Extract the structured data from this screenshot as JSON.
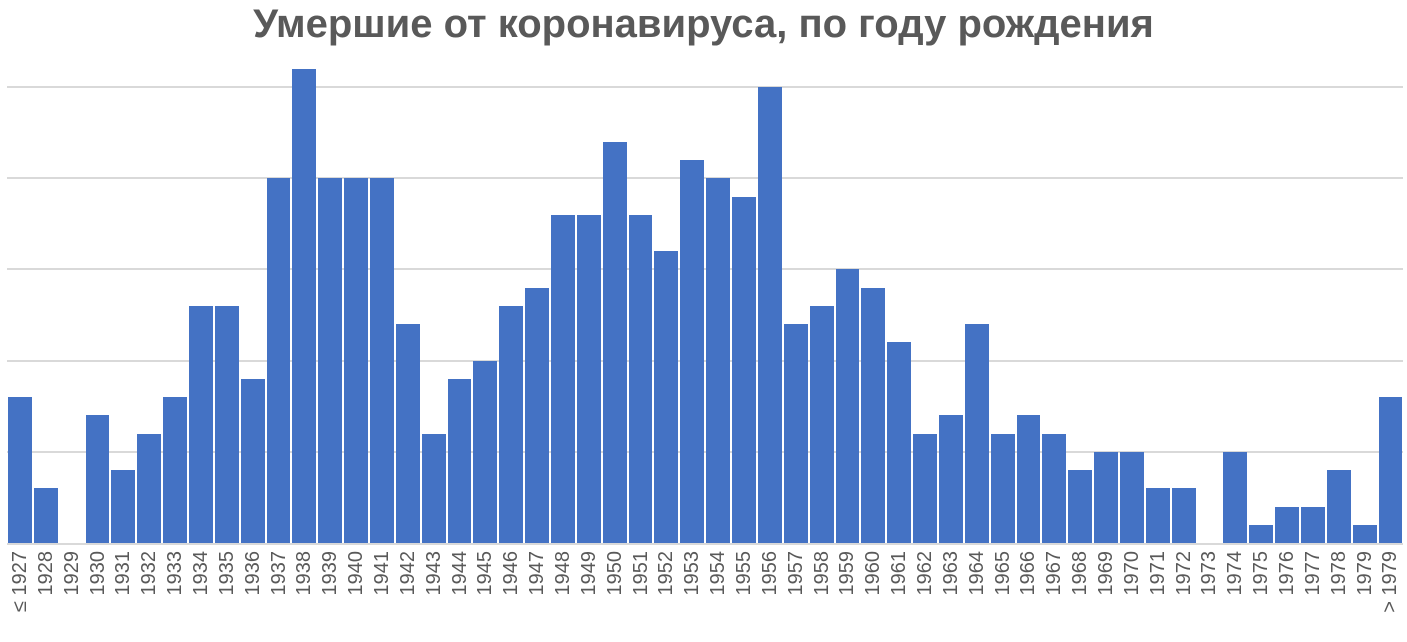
{
  "title": "Умершие от коронавируса, по году рождения",
  "chart_data": {
    "type": "bar",
    "title": "Умершие от коронавируса, по году рождения",
    "xlabel": "",
    "ylabel": "",
    "categories": [
      "≤ 1927",
      "1928",
      "1929",
      "1930",
      "1931",
      "1932",
      "1933",
      "1934",
      "1935",
      "1936",
      "1937",
      "1938",
      "1939",
      "1940",
      "1941",
      "1942",
      "1943",
      "1944",
      "1945",
      "1946",
      "1947",
      "1948",
      "1949",
      "1950",
      "1951",
      "1952",
      "1953",
      "1954",
      "1955",
      "1956",
      "1957",
      "1958",
      "1959",
      "1960",
      "1961",
      "1962",
      "1963",
      "1964",
      "1965",
      "1966",
      "1967",
      "1968",
      "1969",
      "1970",
      "1971",
      "1972",
      "1973",
      "1974",
      "1975",
      "1976",
      "1977",
      "1978",
      "1979",
      "> 1979"
    ],
    "values": [
      8,
      3,
      0,
      7,
      4,
      6,
      8,
      13,
      13,
      9,
      20,
      26,
      20,
      20,
      20,
      12,
      6,
      9,
      10,
      13,
      14,
      18,
      18,
      22,
      18,
      16,
      21,
      20,
      19,
      25,
      12,
      13,
      15,
      14,
      11,
      6,
      7,
      12,
      6,
      7,
      6,
      4,
      5,
      5,
      3,
      3,
      0,
      5,
      1,
      2,
      2,
      4,
      1,
      8
    ],
    "ylim": [
      0,
      26.54
    ],
    "gridlines": [
      5,
      10,
      15,
      20,
      25
    ],
    "grid": true,
    "legend": "none",
    "y_axis_tick_labels_visible": false,
    "x_tick_label_rotation_deg": 90
  },
  "colors": {
    "bar": "#4472C4",
    "gridline": "#D9D9D9",
    "axis_line": "#D9D9D9",
    "title": "#595959",
    "tick_labels": "#595959",
    "background": "#FFFFFF"
  }
}
